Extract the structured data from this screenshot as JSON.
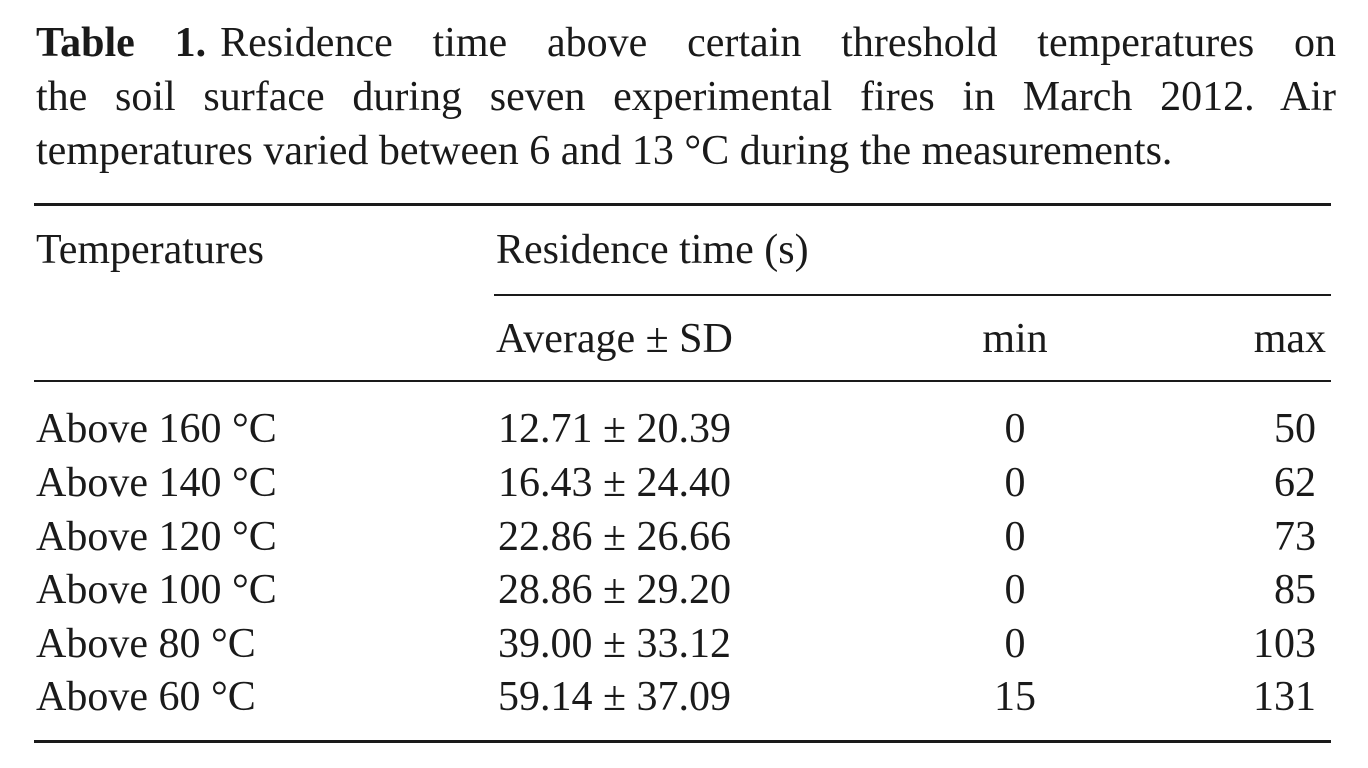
{
  "caption": {
    "label": "Table 1.",
    "line1": "Residence time above certain threshold temperatures on",
    "line2": "the soil surface during seven experimental fires in March 2012. Air",
    "line3": "temperatures varied between 6 and 13 °C during the measurements."
  },
  "table": {
    "header": {
      "temperatures": "Temperatures",
      "residence_time": "Residence time (s)",
      "average_sd": "Average ± SD",
      "min": "min",
      "max": "max"
    },
    "rows": [
      {
        "temp": "Above 160 °C",
        "avg_sd": "12.71 ± 20.39",
        "min": "0",
        "max": "50"
      },
      {
        "temp": "Above 140 °C",
        "avg_sd": "16.43 ± 24.40",
        "min": "0",
        "max": "62"
      },
      {
        "temp": "Above 120 °C",
        "avg_sd": "22.86 ± 26.66",
        "min": "0",
        "max": "73"
      },
      {
        "temp": "Above 100 °C",
        "avg_sd": "28.86 ± 29.20",
        "min": "0",
        "max": "85"
      },
      {
        "temp": "Above 80 °C",
        "avg_sd": "39.00 ± 33.12",
        "min": "0",
        "max": "103"
      },
      {
        "temp": "Above 60 °C",
        "avg_sd": "59.14 ± 37.09",
        "min": "15",
        "max": "131"
      }
    ]
  }
}
